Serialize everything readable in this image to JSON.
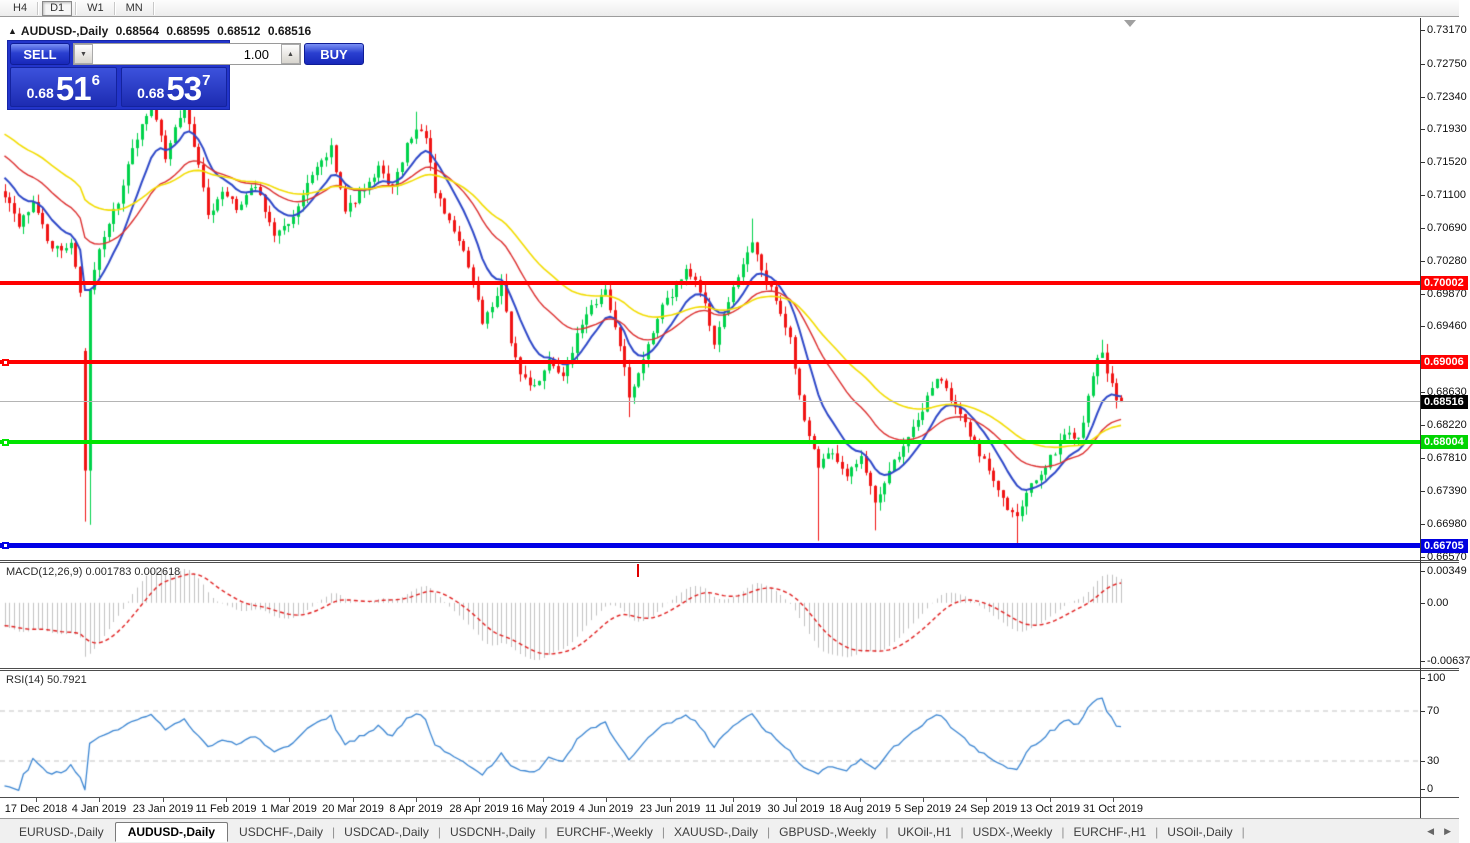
{
  "toolbar": {
    "timeframes": [
      {
        "label": "H4",
        "active": false
      },
      {
        "label": "D1",
        "active": true
      },
      {
        "label": "W1",
        "active": false
      },
      {
        "label": "MN",
        "active": false
      }
    ]
  },
  "chart": {
    "title": {
      "symbol": "AUDUSD-,Daily",
      "open": "0.68564",
      "high": "0.68595",
      "low": "0.68512",
      "close": "0.68516"
    },
    "trade_panel": {
      "sell_label": "SELL",
      "buy_label": "BUY",
      "volume": "1.00",
      "sell_price": {
        "small": "0.68",
        "big": "51",
        "sup": "6"
      },
      "buy_price": {
        "small": "0.68",
        "big": "53",
        "sup": "7"
      }
    }
  },
  "indicators": {
    "macd": {
      "label": "MACD(12,26,9)",
      "values": "0.001783 0.002618",
      "axis_top": "0.00349",
      "axis_zero": "0.00",
      "axis_bottom": "-0.00637"
    },
    "rsi": {
      "label": "RSI(14)",
      "value": "50.7921",
      "axis_labels": [
        "100",
        "70",
        "30",
        "0"
      ],
      "level_lines": [
        70,
        30
      ]
    }
  },
  "tabs": [
    {
      "label": "EURUSD-,Daily",
      "active": false
    },
    {
      "label": "AUDUSD-,Daily",
      "active": true
    },
    {
      "label": "USDCHF-,Daily",
      "active": false
    },
    {
      "label": "USDCAD-,Daily",
      "active": false
    },
    {
      "label": "USDCNH-,Daily",
      "active": false
    },
    {
      "label": "EURCHF-,Weekly",
      "active": false
    },
    {
      "label": "XAUUSD-,Daily",
      "active": false
    },
    {
      "label": "GBPUSD-,Weekly",
      "active": false
    },
    {
      "label": "UKOil-,H1",
      "active": false
    },
    {
      "label": "USDX-,Weekly",
      "active": false
    },
    {
      "label": "EURCHF-,H1",
      "active": false
    },
    {
      "label": "USOil-,Daily",
      "active": false
    }
  ],
  "chart_data": {
    "type": "candlestick",
    "symbol": "AUDUSD-,Daily",
    "current_bar": {
      "open": 0.68564,
      "high": 0.68595,
      "low": 0.68512,
      "close": 0.68516
    },
    "bid_price": 0.68516,
    "y_axis_labels": [
      "0.73170",
      "0.72750",
      "0.72340",
      "0.71930",
      "0.71520",
      "0.71100",
      "0.70690",
      "0.70280",
      "0.69870",
      "0.69460",
      "0.68630",
      "0.68220",
      "0.67810",
      "0.67390",
      "0.66980",
      "0.66570"
    ],
    "boxed_labels": [
      {
        "text": "0.70002",
        "price": 0.70002,
        "color": "#ff0000"
      },
      {
        "text": "0.69006",
        "price": 0.69006,
        "color": "#ff0000"
      },
      {
        "text": "0.68516",
        "price": 0.68516,
        "color": "#000000"
      },
      {
        "text": "0.68004",
        "price": 0.68004,
        "color": "#00d400"
      },
      {
        "text": "0.66705",
        "price": 0.66705,
        "color": "#0000e0"
      }
    ],
    "x_tick_labels": [
      "17 Dec 2018",
      "4 Jan 2019",
      "23 Jan 2019",
      "11 Feb 2019",
      "1 Mar 2019",
      "20 Mar 2019",
      "8 Apr 2019",
      "28 Apr 2019",
      "16 May 2019",
      "4 Jun 2019",
      "23 Jun 2019",
      "11 Jul 2019",
      "30 Jul 2019",
      "18 Aug 2019",
      "5 Sep 2019",
      "24 Sep 2019",
      "13 Oct 2019",
      "31 Oct 2019"
    ],
    "hlines": [
      {
        "price": 0.70002,
        "color": "#ff0000",
        "thickness": 4,
        "handle": false
      },
      {
        "price": 0.69006,
        "color": "#ff0000",
        "thickness": 4,
        "handle": true
      },
      {
        "price": 0.68004,
        "color": "#00e400",
        "thickness": 4,
        "handle": true
      },
      {
        "price": 0.66705,
        "color": "#0000e6",
        "thickness": 5,
        "handle": true
      }
    ],
    "moving_averages": [
      {
        "period": 10,
        "color": "#2e48c8",
        "width": 2
      },
      {
        "period": 25,
        "color": "#dc3030",
        "width": 1.4
      },
      {
        "period": 45,
        "color": "#f2dc02",
        "width": 1.6
      }
    ],
    "colors": {
      "up": "#00d24b",
      "down": "#f01414",
      "macd_hist": "#c2c2c2",
      "macd_signal": "#e02020",
      "rsi_line": "#3c86d2",
      "bid_line": "#b4b4b4"
    },
    "n_bars": 237,
    "price_anchors": [
      [
        0,
        0.7112
      ],
      [
        3,
        0.7068
      ],
      [
        6,
        0.7105
      ],
      [
        10,
        0.7042
      ],
      [
        14,
        0.705
      ],
      [
        16,
        0.6988
      ],
      [
        17,
        0.6765
      ],
      [
        18,
        0.6995
      ],
      [
        20,
        0.704
      ],
      [
        24,
        0.7105
      ],
      [
        28,
        0.7185
      ],
      [
        31,
        0.7222
      ],
      [
        34,
        0.716
      ],
      [
        36,
        0.7195
      ],
      [
        38,
        0.7228
      ],
      [
        41,
        0.715
      ],
      [
        43,
        0.7082
      ],
      [
        46,
        0.712
      ],
      [
        49,
        0.7092
      ],
      [
        53,
        0.7125
      ],
      [
        57,
        0.7062
      ],
      [
        61,
        0.7085
      ],
      [
        65,
        0.7135
      ],
      [
        69,
        0.7168
      ],
      [
        72,
        0.709
      ],
      [
        75,
        0.7112
      ],
      [
        79,
        0.7146
      ],
      [
        82,
        0.7118
      ],
      [
        85,
        0.7175
      ],
      [
        87,
        0.7195
      ],
      [
        89,
        0.7182
      ],
      [
        91,
        0.7118
      ],
      [
        93,
        0.7085
      ],
      [
        95,
        0.7062
      ],
      [
        97,
        0.7038
      ],
      [
        99,
        0.6998
      ],
      [
        101,
        0.6952
      ],
      [
        103,
        0.6975
      ],
      [
        105,
        0.6998
      ],
      [
        107,
        0.693
      ],
      [
        109,
        0.6885
      ],
      [
        112,
        0.6868
      ],
      [
        115,
        0.6905
      ],
      [
        118,
        0.6882
      ],
      [
        121,
        0.6932
      ],
      [
        124,
        0.6968
      ],
      [
        127,
        0.6992
      ],
      [
        129,
        0.695
      ],
      [
        131,
        0.6898
      ],
      [
        132,
        0.6862
      ],
      [
        134,
        0.6882
      ],
      [
        136,
        0.6925
      ],
      [
        138,
        0.6958
      ],
      [
        141,
        0.6988
      ],
      [
        144,
        0.7015
      ],
      [
        146,
        0.7
      ],
      [
        148,
        0.6975
      ],
      [
        150,
        0.6928
      ],
      [
        152,
        0.6958
      ],
      [
        154,
        0.6992
      ],
      [
        156,
        0.7028
      ],
      [
        158,
        0.7048
      ],
      [
        160,
        0.7018
      ],
      [
        163,
        0.6978
      ],
      [
        166,
        0.693
      ],
      [
        168,
        0.686
      ],
      [
        170,
        0.6805
      ],
      [
        172,
        0.6768
      ],
      [
        175,
        0.6788
      ],
      [
        178,
        0.6758
      ],
      [
        181,
        0.6782
      ],
      [
        184,
        0.6722
      ],
      [
        187,
        0.6768
      ],
      [
        190,
        0.6795
      ],
      [
        193,
        0.6832
      ],
      [
        196,
        0.6868
      ],
      [
        198,
        0.6882
      ],
      [
        200,
        0.6858
      ],
      [
        203,
        0.6822
      ],
      [
        206,
        0.6788
      ],
      [
        209,
        0.6755
      ],
      [
        212,
        0.6718
      ],
      [
        214,
        0.6705
      ],
      [
        216,
        0.6738
      ],
      [
        219,
        0.6762
      ],
      [
        222,
        0.6788
      ],
      [
        225,
        0.6818
      ],
      [
        227,
        0.6802
      ],
      [
        229,
        0.6858
      ],
      [
        231,
        0.6902
      ],
      [
        232,
        0.6912
      ],
      [
        233,
        0.6892
      ],
      [
        234,
        0.6872
      ],
      [
        235,
        0.6858
      ],
      [
        236,
        0.68516
      ]
    ],
    "special_bars": {
      "16": {
        "c": 0.6988
      },
      "17": {
        "o": 0.6915,
        "c": 0.6765,
        "l": 0.6701
      },
      "18": {
        "l": 0.6697
      },
      "87": {
        "h": 0.7215
      },
      "132": {
        "l": 0.6832
      },
      "158": {
        "h": 0.7081
      },
      "172": {
        "l": 0.6677
      },
      "184": {
        "l": 0.669
      },
      "214": {
        "l": 0.6671
      },
      "232": {
        "h": 0.6929
      },
      "236": {
        "o": 0.68564,
        "h": 0.68595,
        "l": 0.68512,
        "c": 0.68516
      }
    }
  }
}
